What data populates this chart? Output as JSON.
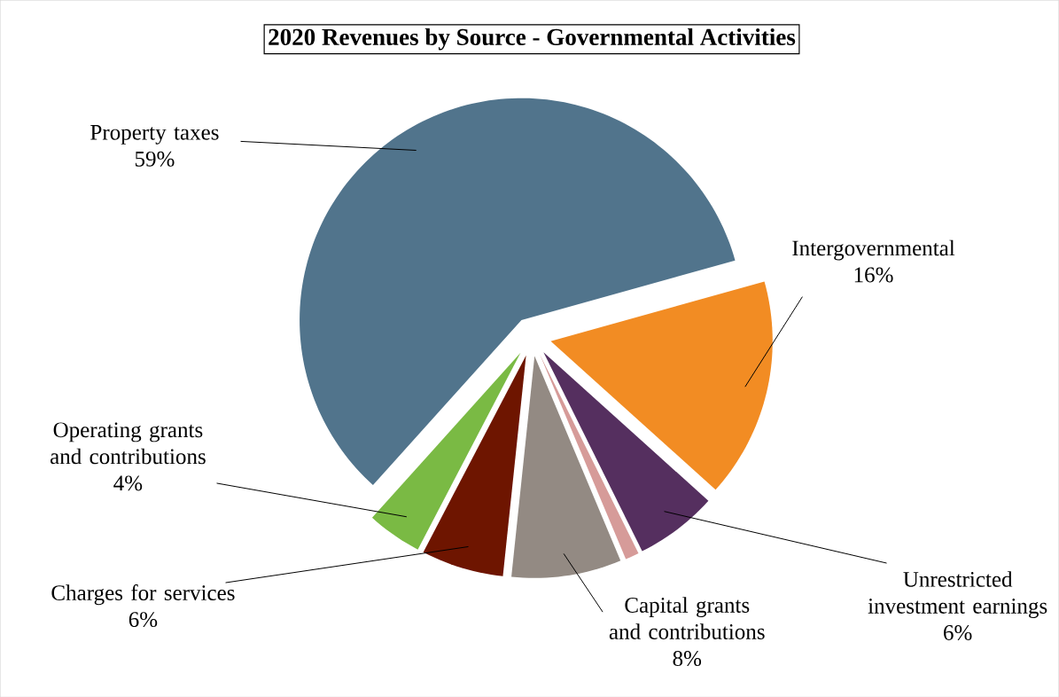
{
  "chart_data": {
    "type": "pie",
    "title": "2020 Revenues by Source - Governmental Activities",
    "categories": [
      "Property taxes",
      "Intergovernmental",
      "Unrestricted investment earnings",
      null,
      "Capital grants and contributions",
      "Charges for services",
      "Operating grants and contributions"
    ],
    "values": [
      59,
      16,
      6,
      1,
      8,
      6,
      4
    ],
    "value_labels": [
      "59%",
      "16%",
      "6%",
      null,
      "8%",
      "6%",
      "4%"
    ],
    "colors": [
      "#51748c",
      "#f28c23",
      "#552f5f",
      "#d69b99",
      "#938a83",
      "#6e1500",
      "#7aba44"
    ]
  }
}
